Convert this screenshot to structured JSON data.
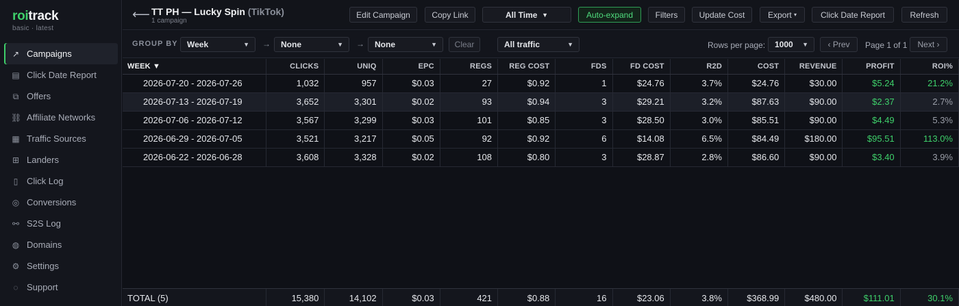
{
  "app": {
    "logo_prefix": "roi",
    "logo_suffix": "track",
    "logo_sub": "basic · latest"
  },
  "sidebar": {
    "items": [
      {
        "label": "Campaigns",
        "icon": "trend-up-icon",
        "glyph": "↗",
        "active": true
      },
      {
        "label": "Click Date Report",
        "icon": "bar-chart-icon",
        "glyph": "▤",
        "active": false
      },
      {
        "label": "Offers",
        "icon": "tag-icon",
        "glyph": "⧉",
        "active": false
      },
      {
        "label": "Affiliate Networks",
        "icon": "network-icon",
        "glyph": "⛓",
        "active": false
      },
      {
        "label": "Traffic Sources",
        "icon": "traffic-icon",
        "glyph": "▦",
        "active": false
      },
      {
        "label": "Landers",
        "icon": "grid-icon",
        "glyph": "⊞",
        "active": false
      },
      {
        "label": "Click Log",
        "icon": "clipboard-icon",
        "glyph": "▯",
        "active": false
      },
      {
        "label": "Conversions",
        "icon": "target-icon",
        "glyph": "◎",
        "active": false
      },
      {
        "label": "S2S Log",
        "icon": "link-icon",
        "glyph": "⚯",
        "active": false
      },
      {
        "label": "Domains",
        "icon": "globe-icon",
        "glyph": "◍",
        "active": false
      },
      {
        "label": "Settings",
        "icon": "gear-icon",
        "glyph": "⚙",
        "active": false
      },
      {
        "label": "Support",
        "icon": "help-icon",
        "glyph": "◌",
        "active": false
      }
    ]
  },
  "header": {
    "back_glyph": "⟵",
    "title": "TT PH — Lucky Spin",
    "source": "(TikTok)",
    "subtitle": "1 campaign",
    "buttons": {
      "edit": "Edit Campaign",
      "copy": "Copy Link",
      "range": "All Time",
      "range_caret": "▼",
      "auto": "Auto-expand",
      "filters": "Filters",
      "update_cost": "Update Cost",
      "export": "Export",
      "export_caret": "▾",
      "click_date": "Click Date Report",
      "refresh": "Refresh"
    }
  },
  "toolbar": {
    "group_by_label": "GROUP BY",
    "group1": "Week",
    "group2": "None",
    "group3": "None",
    "arrow": "→",
    "caret": "▼",
    "clear": "Clear",
    "traffic": "All traffic",
    "rows_per_page_label": "Rows per page:",
    "rows_per_page": "1000",
    "prev": "‹ Prev",
    "page_info": "Page 1 of 1",
    "next": "Next ›"
  },
  "table": {
    "columns": [
      "WEEK ▼",
      "CLICKS",
      "UNIQ",
      "EPC",
      "REGS",
      "REG COST",
      "FDS",
      "FD COST",
      "R2D",
      "COST",
      "REVENUE",
      "PROFIT",
      "ROI%"
    ],
    "rows": [
      [
        "2026-07-20 - 2026-07-26",
        "1,032",
        "957",
        "$0.03",
        "27",
        "$0.92",
        "1",
        "$24.76",
        "3.7%",
        "$24.76",
        "$30.00",
        "$5.24",
        "21.2%"
      ],
      [
        "2026-07-13 - 2026-07-19",
        "3,652",
        "3,301",
        "$0.02",
        "93",
        "$0.94",
        "3",
        "$29.21",
        "3.2%",
        "$87.63",
        "$90.00",
        "$2.37",
        "2.7%"
      ],
      [
        "2026-07-06 - 2026-07-12",
        "3,567",
        "3,299",
        "$0.03",
        "101",
        "$0.85",
        "3",
        "$28.50",
        "3.0%",
        "$85.51",
        "$90.00",
        "$4.49",
        "5.3%"
      ],
      [
        "2026-06-29 - 2026-07-05",
        "3,521",
        "3,217",
        "$0.05",
        "92",
        "$0.92",
        "6",
        "$14.08",
        "6.5%",
        "$84.49",
        "$180.00",
        "$95.51",
        "113.0%"
      ],
      [
        "2026-06-22 - 2026-06-28",
        "3,608",
        "3,328",
        "$0.02",
        "108",
        "$0.80",
        "3",
        "$28.87",
        "2.8%",
        "$86.60",
        "$90.00",
        "$3.40",
        "3.9%"
      ]
    ],
    "roi_style": [
      "pos",
      "muted",
      "muted",
      "pos",
      "muted"
    ],
    "highlight_row": 1,
    "total": [
      "TOTAL (5)",
      "15,380",
      "14,102",
      "$0.03",
      "421",
      "$0.88",
      "16",
      "$23.06",
      "3.8%",
      "$368.99",
      "$480.00",
      "$111.01",
      "30.1%"
    ]
  },
  "colors": {
    "accent": "#3ecf6a",
    "background": "#0f1117",
    "sidebar": "#14161d"
  }
}
